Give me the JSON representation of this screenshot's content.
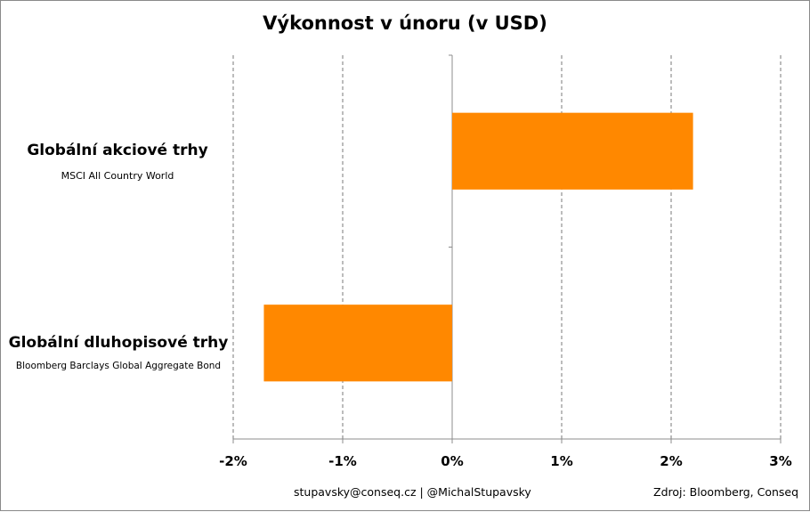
{
  "chart_data": {
    "type": "bar",
    "orientation": "horizontal",
    "title": "Výkonnost v únoru (v USD)",
    "categories": [
      {
        "name": "Globální akciové trhy",
        "subtitle": "MSCI All Country World"
      },
      {
        "name": "Globální dluhopisové trhy",
        "subtitle": "Bloomberg Barclays Global Aggregate Bond"
      }
    ],
    "values": [
      2.2,
      -1.72
    ],
    "value_unit": "%",
    "xlim": [
      -2,
      3
    ],
    "xticks": [
      -2,
      -1,
      0,
      1,
      2,
      3
    ],
    "xtick_labels": [
      "-2%",
      "-1%",
      "0%",
      "1%",
      "2%",
      "3%"
    ],
    "grid": "vertical dashed",
    "bar_color": "#FF8800",
    "xlabel": "",
    "ylabel": ""
  },
  "footer": {
    "contact": "stupavsky@conseq.cz  |  @MichalStupavsky",
    "source": "Zdroj: Bloomberg, Conseq"
  }
}
